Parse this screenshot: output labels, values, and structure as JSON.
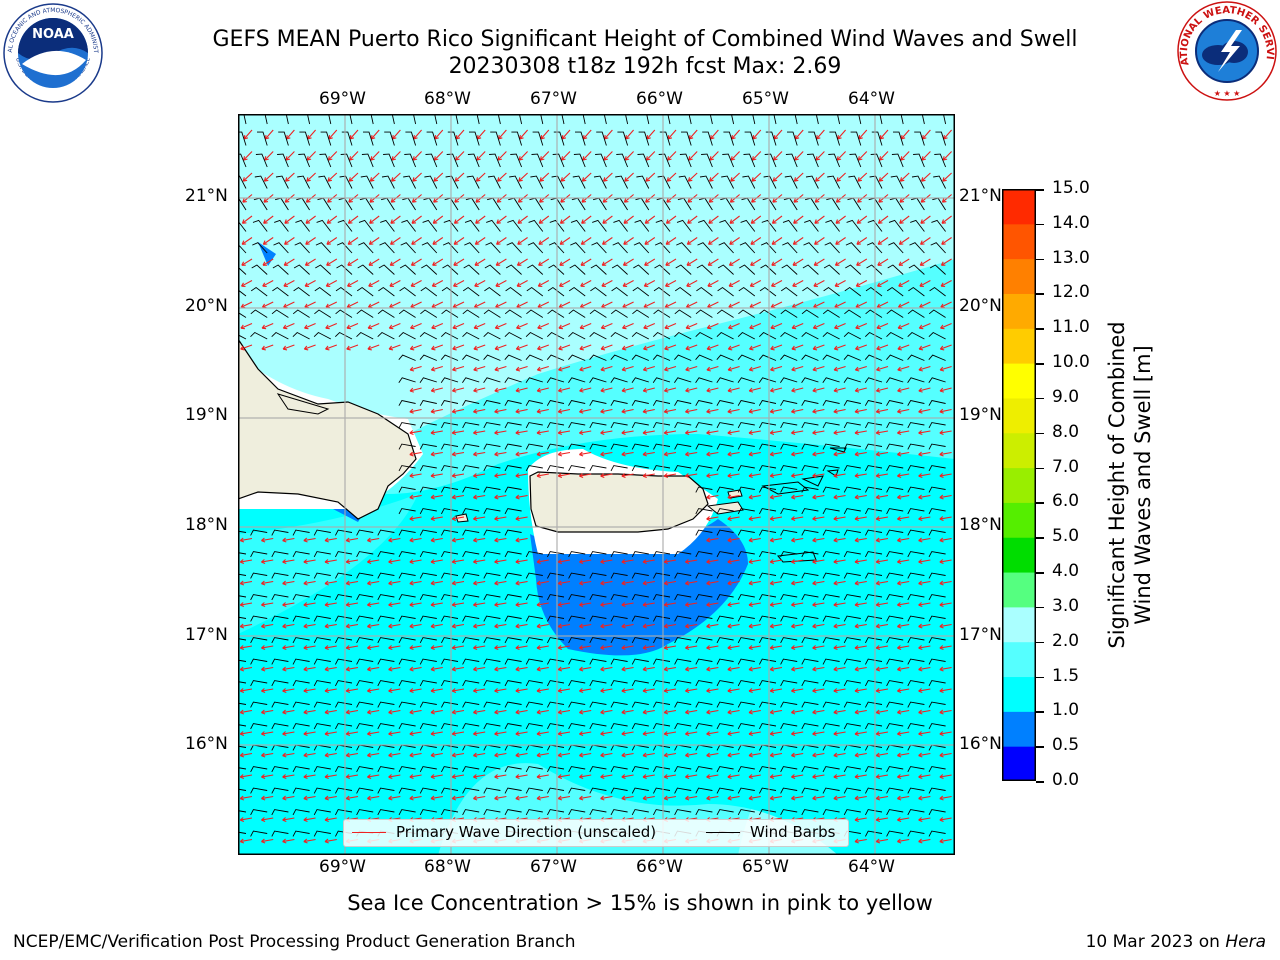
{
  "title": {
    "line1": "GEFS MEAN Puerto Rico Significant Height of Combined Wind Waves and Swell",
    "line2": "20230308 t18z 192h fcst   Max: 2.69"
  },
  "logos": {
    "left": {
      "text": "NOAA",
      "ring_top": "NATIONAL OCEANIC AND ATMOSPHERIC ADMINISTRATION",
      "ring_bottom": "U.S. DEPARTMENT OF COMMERCE"
    },
    "right": {
      "ring_text": "NATIONAL WEATHER SERVICE"
    }
  },
  "axes": {
    "lon_labels": [
      "69°W",
      "68°W",
      "67°W",
      "66°W",
      "65°W",
      "64°W"
    ],
    "lat_labels": [
      "21°N",
      "20°N",
      "19°N",
      "18°N",
      "17°N",
      "16°N"
    ]
  },
  "colorbar": {
    "title_line1": "Significant Height of Combined",
    "title_line2": "Wind Waves and Swell [m]",
    "ticks": [
      "15.0",
      "14.0",
      "13.0",
      "12.0",
      "11.0",
      "10.0",
      "9.0",
      "8.0",
      "7.0",
      "6.0",
      "5.0",
      "4.0",
      "3.0",
      "2.0",
      "1.5",
      "1.0",
      "0.5",
      "0.0"
    ],
    "colors_bottom_to_top": [
      "#0000ff",
      "#0080ff",
      "#00ffff",
      "#55ffff",
      "#aaffff",
      "#55ff80",
      "#00dd00",
      "#55ee00",
      "#99ee00",
      "#ccee00",
      "#eeee00",
      "#ffff00",
      "#ffcc00",
      "#ffaa00",
      "#ff8000",
      "#ff5500",
      "#ff2a00"
    ]
  },
  "legend": {
    "wave_dir": "Primary Wave Direction (unscaled)",
    "wind_barbs": "Wind Barbs",
    "wave_color": "#ee2222",
    "barb_color": "#000000"
  },
  "ice_note": "Sea Ice Concentration > 15% is shown in pink to yellow",
  "footer": {
    "left": "NCEP/EMC/Verification Post Processing Product Generation Branch",
    "date": "10 Mar 2023 on ",
    "host": "Hera"
  }
}
